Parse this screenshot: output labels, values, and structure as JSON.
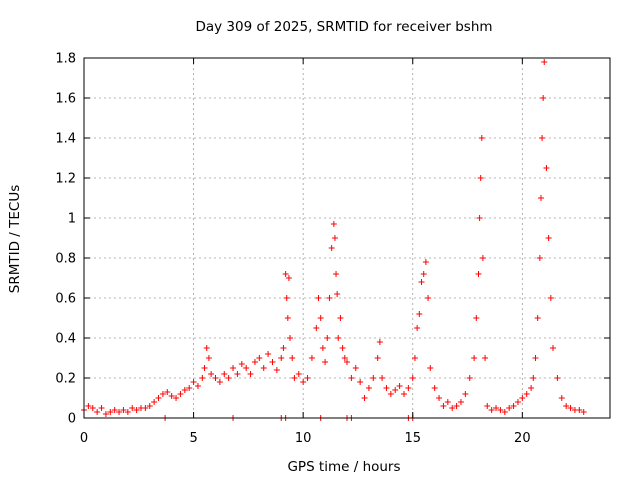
{
  "chart_data": {
    "type": "scatter",
    "title": "Day 309 of 2025, SRMTID for receiver bshm",
    "xlabel": "GPS time / hours",
    "ylabel": "SRMTID / TECUs",
    "xlim": [
      0,
      24
    ],
    "ylim": [
      0,
      1.8
    ],
    "xticks": [
      0,
      5,
      10,
      15,
      20
    ],
    "xtick_labels": [
      "0",
      "5",
      "10",
      "15",
      "20"
    ],
    "yticks": [
      0,
      0.2,
      0.4,
      0.6,
      0.8,
      1,
      1.2,
      1.4,
      1.6,
      1.8
    ],
    "ytick_labels": [
      "0",
      "0.2",
      "0.4",
      "0.6",
      "0.8",
      "1",
      "1.2",
      "1.4",
      "1.6",
      "1.8"
    ],
    "grid": true,
    "marker": "+",
    "color": "#ff0000",
    "series": [
      {
        "name": "SRMTID",
        "x": [
          0.0,
          0.2,
          0.4,
          0.6,
          0.8,
          1.0,
          1.2,
          1.4,
          1.6,
          1.8,
          2.0,
          2.2,
          2.4,
          2.6,
          2.8,
          3.0,
          3.2,
          3.4,
          3.6,
          3.8,
          4.0,
          4.2,
          4.4,
          4.6,
          4.8,
          5.0,
          5.2,
          5.4,
          5.5,
          5.6,
          5.7,
          5.8,
          6.0,
          6.2,
          6.4,
          6.6,
          6.8,
          7.0,
          7.2,
          7.4,
          7.6,
          7.8,
          8.0,
          8.2,
          8.4,
          8.6,
          8.8,
          9.0,
          9.1,
          9.2,
          9.25,
          9.3,
          9.35,
          9.4,
          9.5,
          9.6,
          9.8,
          10.0,
          10.2,
          10.4,
          10.6,
          10.7,
          10.8,
          10.9,
          11.0,
          11.1,
          11.2,
          11.3,
          11.4,
          11.45,
          11.5,
          11.55,
          11.6,
          11.7,
          11.8,
          11.9,
          12.0,
          12.2,
          12.4,
          12.6,
          12.8,
          13.0,
          13.2,
          13.4,
          13.5,
          13.6,
          13.8,
          14.0,
          14.2,
          14.4,
          14.6,
          14.8,
          15.0,
          15.1,
          15.2,
          15.3,
          15.4,
          15.5,
          15.6,
          15.7,
          15.8,
          16.0,
          16.2,
          16.4,
          16.6,
          16.8,
          17.0,
          17.2,
          17.4,
          17.6,
          17.8,
          17.9,
          18.0,
          18.05,
          18.1,
          18.15,
          18.2,
          18.3,
          18.4,
          18.6,
          18.8,
          19.0,
          19.2,
          19.4,
          19.6,
          19.8,
          20.0,
          20.2,
          20.4,
          20.5,
          20.6,
          20.7,
          20.8,
          20.85,
          20.9,
          20.95,
          21.0,
          21.1,
          21.2,
          21.3,
          21.4,
          21.6,
          21.8,
          22.0,
          22.2,
          22.4,
          22.6,
          22.8,
          3.7,
          6.8,
          9.0,
          9.2,
          10.8,
          12.0,
          12.2,
          14.8,
          15.0
        ],
        "y": [
          0.04,
          0.06,
          0.05,
          0.03,
          0.05,
          0.02,
          0.03,
          0.04,
          0.03,
          0.04,
          0.03,
          0.05,
          0.04,
          0.05,
          0.05,
          0.06,
          0.08,
          0.1,
          0.12,
          0.13,
          0.11,
          0.1,
          0.12,
          0.14,
          0.15,
          0.18,
          0.16,
          0.2,
          0.25,
          0.35,
          0.3,
          0.22,
          0.2,
          0.18,
          0.22,
          0.2,
          0.25,
          0.22,
          0.27,
          0.25,
          0.22,
          0.28,
          0.3,
          0.25,
          0.32,
          0.28,
          0.24,
          0.3,
          0.35,
          0.72,
          0.6,
          0.5,
          0.7,
          0.4,
          0.3,
          0.2,
          0.22,
          0.18,
          0.2,
          0.3,
          0.45,
          0.6,
          0.5,
          0.35,
          0.28,
          0.4,
          0.6,
          0.85,
          0.97,
          0.9,
          0.72,
          0.62,
          0.4,
          0.5,
          0.35,
          0.3,
          0.28,
          0.2,
          0.25,
          0.18,
          0.1,
          0.15,
          0.2,
          0.3,
          0.38,
          0.2,
          0.15,
          0.12,
          0.14,
          0.16,
          0.12,
          0.15,
          0.2,
          0.3,
          0.45,
          0.52,
          0.68,
          0.72,
          0.78,
          0.6,
          0.25,
          0.15,
          0.1,
          0.06,
          0.08,
          0.05,
          0.06,
          0.08,
          0.12,
          0.2,
          0.3,
          0.5,
          0.72,
          1.0,
          1.2,
          1.4,
          0.8,
          0.3,
          0.06,
          0.04,
          0.05,
          0.04,
          0.03,
          0.05,
          0.06,
          0.08,
          0.1,
          0.12,
          0.15,
          0.2,
          0.3,
          0.5,
          0.8,
          1.1,
          1.4,
          1.6,
          1.78,
          1.25,
          0.9,
          0.6,
          0.35,
          0.2,
          0.1,
          0.06,
          0.05,
          0.04,
          0.04,
          0.03,
          0.0,
          0.0,
          0.0,
          0.0,
          0.0,
          0.0,
          0.0,
          0.0,
          0.0
        ]
      }
    ]
  }
}
